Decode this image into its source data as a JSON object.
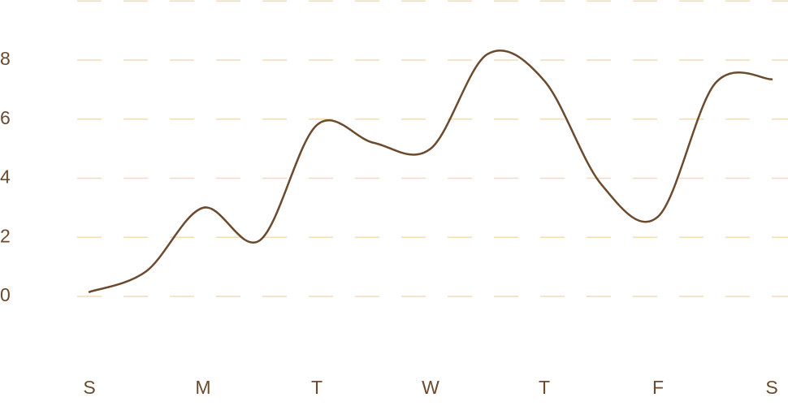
{
  "chart_data": {
    "type": "line",
    "categories": [
      "S",
      null,
      "M",
      null,
      "T",
      null,
      "W",
      null,
      "T",
      null,
      "F",
      null,
      "S"
    ],
    "series": [
      {
        "color": "#6b4a2e",
        "values": [
          0.15,
          0.85,
          3.0,
          1.9,
          5.8,
          5.2,
          5.0,
          8.2,
          7.3,
          3.8,
          2.7,
          7.2,
          7.35
        ]
      }
    ],
    "ylim": [
      0,
      10
    ],
    "yticks": [
      0,
      2,
      4,
      6,
      8
    ],
    "grid": true,
    "smooth": true
  }
}
